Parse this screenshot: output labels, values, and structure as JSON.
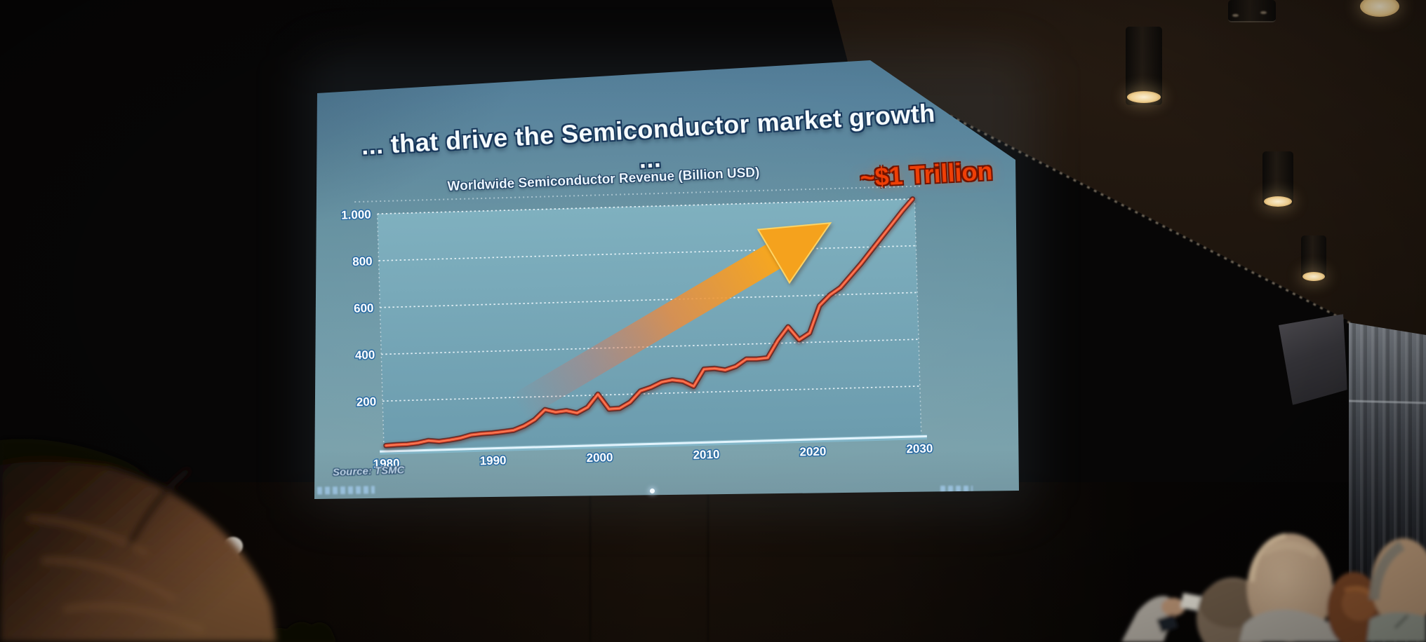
{
  "slide": {
    "headline": "... that drive the Semiconductor market growth ...",
    "chart_title": "Worldwide Semiconductor Revenue (Billion USD)",
    "annotation": "~$1 Trillion",
    "source": "Source: TSMC"
  },
  "chart_data": {
    "type": "line",
    "title": "Worldwide Semiconductor Revenue (Billion USD)",
    "series": [
      {
        "name": "Worldwide semiconductor revenue (Billion USD)",
        "years": [
          1980,
          1981,
          1982,
          1983,
          1984,
          1985,
          1986,
          1987,
          1988,
          1989,
          1990,
          1991,
          1992,
          1993,
          1994,
          1995,
          1996,
          1997,
          1998,
          1999,
          2000,
          2001,
          2002,
          2003,
          2004,
          2005,
          2006,
          2007,
          2008,
          2009,
          2010,
          2011,
          2012,
          2013,
          2014,
          2015,
          2016,
          2017,
          2018,
          2019,
          2020,
          2021,
          2022,
          2023,
          2024,
          2025,
          2026,
          2027,
          2028,
          2029,
          2030
        ],
        "values": [
          10,
          12,
          13,
          17,
          26,
          21,
          26,
          33,
          45,
          49,
          51,
          55,
          60,
          77,
          102,
          144,
          132,
          137,
          126,
          149,
          204,
          139,
          141,
          166,
          213,
          227,
          248,
          256,
          249,
          226,
          298,
          300,
          292,
          306,
          336,
          335,
          339,
          412,
          469,
          412,
          440,
          556,
          600,
          630,
          680,
          730,
          785,
          840,
          895,
          950,
          1000
        ]
      }
    ],
    "x_ticks": [
      "1980",
      "1990",
      "2000",
      "2010",
      "2020",
      "2030"
    ],
    "x_tick_values": [
      1980,
      1990,
      2000,
      2010,
      2020,
      2030
    ],
    "y_ticks": [
      "1.000",
      "800",
      "600",
      "400",
      "200"
    ],
    "y_tick_values": [
      1000,
      800,
      600,
      400,
      200
    ],
    "xlim": [
      1980,
      2030
    ],
    "ylim": [
      0,
      1050
    ],
    "grid": "dashed horizontal gridlines",
    "legend": "none",
    "annotation": "~$1 Trillion",
    "source": "Source: TSMC",
    "line_color": "#e44a2e",
    "arrow_color": "#f5a21d",
    "trend_arrow": "large orange gradient arrow rising from about (1995, 150) to about (2026, 1000)"
  },
  "colors": {
    "screen_blue": "#6f9aa8",
    "plot_fill": "#76a7b7",
    "headline_text": "#f6fcff",
    "annotation_orange": "#ef3f06",
    "gridline": "#f5fbff"
  }
}
